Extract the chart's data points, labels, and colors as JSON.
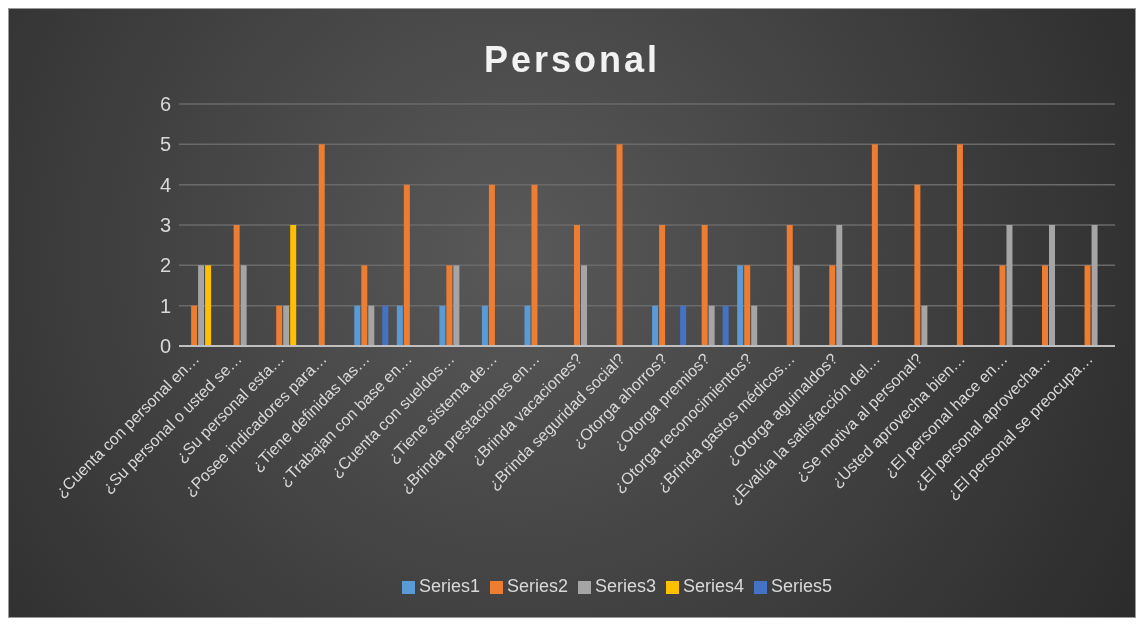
{
  "chart_data": {
    "type": "bar",
    "title": "Personal",
    "categories": [
      "¿Cuenta con personal en…",
      "¿Su personal o usted se…",
      "¿Su personal esta…",
      "¿Posee indicadores para…",
      "¿Tiene definidas las…",
      "¿Trabajan con base en…",
      "¿Cuenta con sueldos…",
      "¿Tiene sistema de…",
      "¿Brinda prestaciones en…",
      "¿Brinda vacaciones?",
      "¿Brinda seguridad social?",
      "¿Otorga ahorros?",
      "¿Otorga premios?",
      "¿Otorga reconocimientos?",
      "¿Brinda gastos médicos…",
      "¿Otorga aguinaldos?",
      "¿Evalúa la satisfacción del…",
      "¿Se motiva al personal?",
      "¿Usted aprovecha bien…",
      "¿El personal hace en…",
      "¿El personal aprovecha…",
      "¿El personal se preocupa…"
    ],
    "series": [
      {
        "name": "Series1",
        "color": "#5b9bd5",
        "values": [
          null,
          null,
          null,
          null,
          1,
          1,
          1,
          1,
          1,
          null,
          null,
          1,
          null,
          2,
          null,
          null,
          null,
          null,
          null,
          null,
          null,
          null
        ]
      },
      {
        "name": "Series2",
        "color": "#ed7d31",
        "values": [
          1,
          3,
          1,
          5,
          2,
          4,
          2,
          4,
          4,
          3,
          5,
          3,
          3,
          2,
          3,
          2,
          5,
          4,
          5,
          2,
          2,
          2
        ]
      },
      {
        "name": "Series3",
        "color": "#a5a5a5",
        "values": [
          2,
          2,
          1,
          null,
          1,
          null,
          2,
          null,
          null,
          2,
          null,
          null,
          1,
          1,
          2,
          3,
          null,
          1,
          null,
          3,
          3,
          3
        ]
      },
      {
        "name": "Series4",
        "color": "#ffc000",
        "values": [
          2,
          null,
          3,
          null,
          null,
          null,
          null,
          null,
          null,
          null,
          null,
          null,
          null,
          null,
          null,
          null,
          null,
          null,
          null,
          null,
          null,
          null
        ]
      },
      {
        "name": "Series5",
        "color": "#4472c4",
        "values": [
          null,
          null,
          null,
          null,
          1,
          null,
          null,
          null,
          null,
          null,
          null,
          1,
          1,
          null,
          null,
          null,
          null,
          null,
          null,
          null,
          null,
          null
        ]
      }
    ],
    "ylim": [
      0,
      6
    ],
    "yticks": [
      0,
      1,
      2,
      3,
      4,
      5,
      6
    ],
    "grid": "y",
    "legend": "bottom"
  }
}
